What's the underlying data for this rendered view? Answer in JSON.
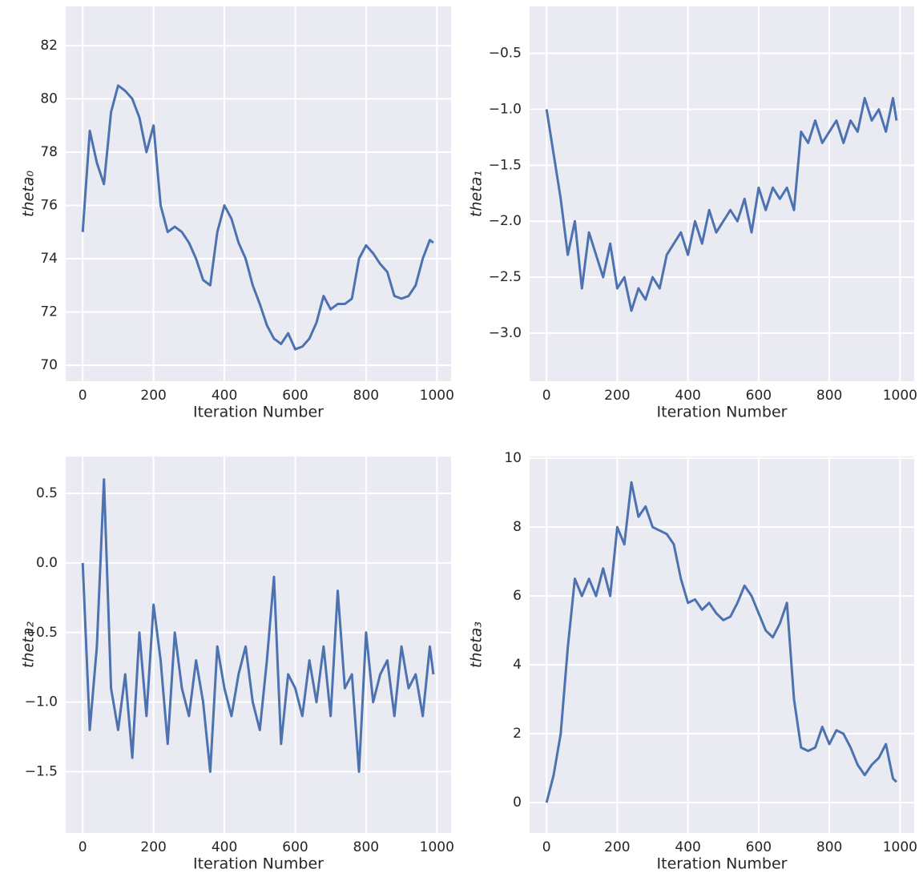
{
  "chart_data": [
    {
      "type": "line",
      "xlabel": "Iteration Number",
      "ylabel": "theta₀",
      "color": "#4c72b0",
      "grid": true,
      "x": [
        0,
        20,
        40,
        60,
        80,
        100,
        120,
        140,
        160,
        180,
        200,
        220,
        240,
        260,
        280,
        300,
        320,
        340,
        360,
        380,
        400,
        420,
        440,
        460,
        480,
        500,
        520,
        540,
        560,
        580,
        600,
        620,
        640,
        660,
        680,
        700,
        720,
        740,
        760,
        780,
        800,
        820,
        840,
        860,
        880,
        900,
        920,
        940,
        960,
        980,
        990
      ],
      "values": [
        75.0,
        78.8,
        77.6,
        76.8,
        79.5,
        80.5,
        80.3,
        80.0,
        79.3,
        78.0,
        79.0,
        76.0,
        75.0,
        75.2,
        75.0,
        74.6,
        74.0,
        73.2,
        73.0,
        75.0,
        76.0,
        75.5,
        74.6,
        74.0,
        73.0,
        72.3,
        71.5,
        71.0,
        70.8,
        71.2,
        70.6,
        70.7,
        71.0,
        71.6,
        72.6,
        72.1,
        72.3,
        72.3,
        72.5,
        74.0,
        74.5,
        74.2,
        73.8,
        73.5,
        72.6,
        72.5,
        72.6,
        73.0,
        74.0,
        74.7,
        74.6
      ],
      "xlim": [
        -48,
        1040
      ],
      "xticks": [
        0,
        200,
        400,
        600,
        800,
        1000
      ],
      "ylim": [
        69.4,
        83.47
      ],
      "yticks": [
        70,
        72,
        74,
        76,
        78,
        80,
        82
      ]
    },
    {
      "type": "line",
      "xlabel": "Iteration Number",
      "ylabel": "theta₁",
      "color": "#4c72b0",
      "grid": true,
      "x": [
        0,
        20,
        40,
        60,
        80,
        100,
        120,
        140,
        160,
        180,
        200,
        220,
        240,
        260,
        280,
        300,
        320,
        340,
        360,
        380,
        400,
        420,
        440,
        460,
        480,
        500,
        520,
        540,
        560,
        580,
        600,
        620,
        640,
        660,
        680,
        700,
        720,
        740,
        760,
        780,
        800,
        820,
        840,
        860,
        880,
        900,
        920,
        940,
        960,
        980,
        990
      ],
      "values": [
        -1.0,
        -1.4,
        -1.8,
        -2.3,
        -2.0,
        -2.6,
        -2.1,
        -2.3,
        -2.5,
        -2.2,
        -2.6,
        -2.5,
        -2.8,
        -2.6,
        -2.7,
        -2.5,
        -2.6,
        -2.3,
        -2.2,
        -2.1,
        -2.3,
        -2.0,
        -2.2,
        -1.9,
        -2.1,
        -2.0,
        -1.9,
        -2.0,
        -1.8,
        -2.1,
        -1.7,
        -1.9,
        -1.7,
        -1.8,
        -1.7,
        -1.9,
        -1.2,
        -1.3,
        -1.1,
        -1.3,
        -1.2,
        -1.1,
        -1.3,
        -1.1,
        -1.2,
        -0.9,
        -1.1,
        -1.0,
        -1.2,
        -0.9,
        -1.1
      ],
      "xlim": [
        -48,
        1040
      ],
      "xticks": [
        0,
        200,
        400,
        600,
        800,
        1000
      ],
      "ylim": [
        -3.43,
        -0.08
      ],
      "yticks": [
        {
          "value": -3.0,
          "label": "−3.0"
        },
        {
          "value": -2.5,
          "label": "−2.5"
        },
        {
          "value": -2.0,
          "label": "−2.0"
        },
        {
          "value": -1.5,
          "label": "−1.5"
        },
        {
          "value": -1.0,
          "label": "−1.0"
        },
        {
          "value": -0.5,
          "label": "−0.5"
        }
      ]
    },
    {
      "type": "line",
      "xlabel": "Iteration Number",
      "ylabel": "theta₂",
      "color": "#4c72b0",
      "grid": true,
      "x": [
        0,
        20,
        40,
        60,
        80,
        100,
        120,
        140,
        160,
        180,
        200,
        220,
        240,
        260,
        280,
        300,
        320,
        340,
        360,
        380,
        400,
        420,
        440,
        460,
        480,
        500,
        520,
        540,
        560,
        580,
        600,
        620,
        640,
        660,
        680,
        700,
        720,
        740,
        760,
        780,
        800,
        820,
        840,
        860,
        880,
        900,
        920,
        940,
        960,
        980,
        990
      ],
      "values": [
        0.0,
        -1.2,
        -0.6,
        0.6,
        -0.9,
        -1.2,
        -0.8,
        -1.4,
        -0.5,
        -1.1,
        -0.3,
        -0.7,
        -1.3,
        -0.5,
        -0.9,
        -1.1,
        -0.7,
        -1.0,
        -1.5,
        -0.6,
        -0.9,
        -1.1,
        -0.8,
        -0.6,
        -1.0,
        -1.2,
        -0.7,
        -0.1,
        -1.3,
        -0.8,
        -0.9,
        -1.1,
        -0.7,
        -1.0,
        -0.6,
        -1.1,
        -0.2,
        -0.9,
        -0.8,
        -1.5,
        -0.5,
        -1.0,
        -0.8,
        -0.7,
        -1.1,
        -0.6,
        -0.9,
        -0.8,
        -1.1,
        -0.6,
        -0.8
      ],
      "xlim": [
        -48,
        1040
      ],
      "xticks": [
        0,
        200,
        400,
        600,
        800,
        1000
      ],
      "ylim": [
        -1.94,
        0.765
      ],
      "yticks": [
        {
          "value": -1.5,
          "label": "−1.5"
        },
        {
          "value": -1.0,
          "label": "−1.0"
        },
        {
          "value": -0.5,
          "label": "−0.5"
        },
        {
          "value": 0,
          "label": "0.0"
        },
        0.5
      ]
    },
    {
      "type": "line",
      "xlabel": "Iteration Number",
      "ylabel": "theta₃",
      "color": "#4c72b0",
      "grid": true,
      "x": [
        0,
        20,
        40,
        60,
        80,
        100,
        120,
        140,
        160,
        180,
        200,
        220,
        240,
        260,
        280,
        300,
        320,
        340,
        360,
        380,
        400,
        420,
        440,
        460,
        480,
        500,
        520,
        540,
        560,
        580,
        600,
        620,
        640,
        660,
        680,
        700,
        720,
        740,
        760,
        780,
        800,
        820,
        840,
        860,
        880,
        900,
        920,
        940,
        960,
        980,
        990
      ],
      "values": [
        0.0,
        0.8,
        2.0,
        4.5,
        6.5,
        6.0,
        6.5,
        6.0,
        6.8,
        6.0,
        8.0,
        7.5,
        9.3,
        8.3,
        8.6,
        8.0,
        7.9,
        7.8,
        7.5,
        6.5,
        5.8,
        5.9,
        5.6,
        5.8,
        5.5,
        5.3,
        5.4,
        5.8,
        6.3,
        6.0,
        5.5,
        5.0,
        4.8,
        5.2,
        5.8,
        3.0,
        1.6,
        1.5,
        1.6,
        2.2,
        1.7,
        2.1,
        2.0,
        1.6,
        1.1,
        0.8,
        1.1,
        1.3,
        1.7,
        0.7,
        0.6
      ],
      "xlim": [
        -48,
        1040
      ],
      "xticks": [
        0,
        200,
        400,
        600,
        800,
        1000
      ],
      "ylim": [
        -0.88,
        10.05
      ],
      "yticks": [
        0,
        2,
        4,
        6,
        8,
        10
      ]
    }
  ]
}
